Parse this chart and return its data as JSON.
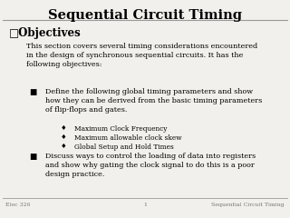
{
  "title": "Sequential Circuit Timing",
  "background_color": "#f2f0ec",
  "title_color": "#000000",
  "title_fontsize": 10.5,
  "header_line_color": "#999999",
  "bullet_square_open": "□",
  "bullet_filled_sq": "■",
  "bullet_diamond": "♦",
  "objectives_label": "Objectives",
  "intro_text": "This section covers several timing considerations encountered\nin the design of synchronous sequential circuits. It has the\nfollowing objectives:",
  "sub_bullet1_text": "Define the following global timing parameters and show\nhow they can be derived from the basic timing parameters\nof flip-flops and gates.",
  "sub_sub_bullets": [
    "Maximum Clock Frequency",
    "Maximum allowable clock skew",
    "Global Setup and Hold Times"
  ],
  "sub_bullet2_text": "Discuss ways to control the loading of data into registers\nand show why gating the clock signal to do this is a poor\ndesign practice.",
  "footer_left": "Elec 326",
  "footer_center": "1",
  "footer_right": "Sequential Circuit Timing",
  "footer_fontsize": 4.5,
  "footer_line_color": "#999999",
  "body_fontsize": 5.8,
  "objectives_fontsize": 8.5
}
